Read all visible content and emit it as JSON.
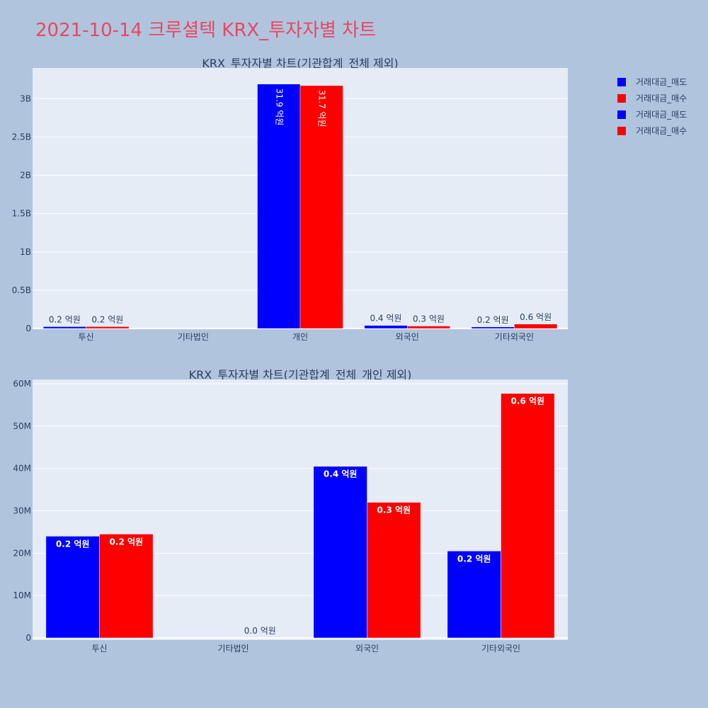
{
  "title": "2021-10-14 크루셜텍 KRX_투자자별 차트",
  "colors": {
    "sell": "#0000ff",
    "buy": "#ff0000",
    "title": "#e8475f"
  },
  "legend": [
    {
      "label": "거래대금_매도",
      "color": "#0000ff"
    },
    {
      "label": "거래대금_매수",
      "color": "#ff0000"
    },
    {
      "label": "거래대금_매도",
      "color": "#0000ff"
    },
    {
      "label": "거래대금_매수",
      "color": "#ff0000"
    }
  ],
  "chart_data": [
    {
      "type": "bar",
      "title": "KRX_투자자별 차트(기관합계_전체 제외)",
      "categories": [
        "투신",
        "기타법인",
        "개인",
        "외국인",
        "기타외국인"
      ],
      "ylim": [
        0,
        3400000000
      ],
      "yticks": [
        0,
        500000000,
        1000000000,
        1500000000,
        2000000000,
        2500000000,
        3000000000
      ],
      "yticklabels": [
        "0",
        "0.5B",
        "1B",
        "1.5B",
        "2B",
        "2.5B",
        "3B"
      ],
      "grid": true,
      "series": [
        {
          "name": "거래대금_매도",
          "color": "#0000ff",
          "values": [
            24000000,
            null,
            3190000000,
            40500000,
            20500000
          ],
          "labels": [
            "0.2 억원",
            "",
            "31.9 억원",
            "0.4 억원",
            "0.2 억원"
          ]
        },
        {
          "name": "거래대금_매수",
          "color": "#ff0000",
          "values": [
            24500000,
            null,
            3170000000,
            32000000,
            57700000
          ],
          "labels": [
            "0.2 억원",
            "",
            "31.7 억원",
            "0.3 억원",
            "0.6 억원"
          ]
        }
      ]
    },
    {
      "type": "bar",
      "title": "KRX_투자자별 차트(기관합계_전체_개인 제외)",
      "categories": [
        "투신",
        "기타법인",
        "외국인",
        "기타외국인"
      ],
      "ylim": [
        -500000,
        61000000
      ],
      "yticks": [
        0,
        10000000,
        20000000,
        30000000,
        40000000,
        50000000,
        60000000
      ],
      "yticklabels": [
        "0",
        "10M",
        "20M",
        "30M",
        "40M",
        "50M",
        "60M"
      ],
      "grid": true,
      "series": [
        {
          "name": "거래대금_매도",
          "color": "#0000ff",
          "values": [
            24000000,
            null,
            40500000,
            20500000
          ],
          "labels": [
            "0.2 억원",
            "",
            "0.4 억원",
            "0.2 억원"
          ]
        },
        {
          "name": "거래대금_매수",
          "color": "#ff0000",
          "values": [
            24500000,
            0,
            32000000,
            57700000
          ],
          "labels": [
            "0.2 억원",
            "0.0 억원",
            "0.3 억원",
            "0.6 억원"
          ]
        }
      ]
    }
  ]
}
